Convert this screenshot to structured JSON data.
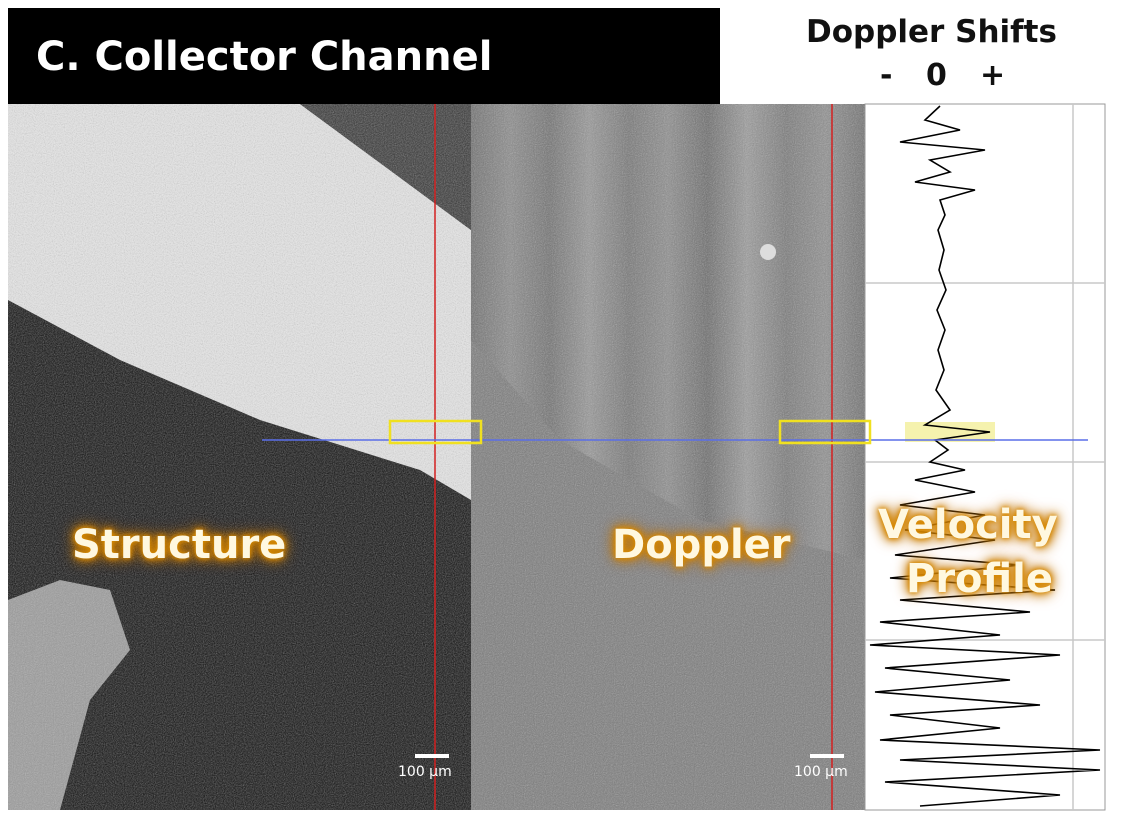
{
  "header": {
    "title": "C.  Collector Channel"
  },
  "legend": {
    "title": "Doppler Shifts",
    "minus": "-",
    "zero": "0",
    "plus": "+"
  },
  "panels": [
    {
      "label": "Structure",
      "scale_bar": "100 µm"
    },
    {
      "label": "Doppler",
      "scale_bar": "100 µm"
    },
    {
      "label_lines": [
        "Velocity",
        "Profile"
      ]
    }
  ]
}
